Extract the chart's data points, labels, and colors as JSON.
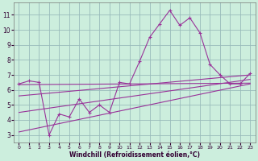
{
  "xlabel": "Windchill (Refroidissement éolien,°C)",
  "background_color": "#cceedd",
  "grid_color": "#99bbbb",
  "line_color": "#993399",
  "xlim": [
    -0.5,
    23.5
  ],
  "ylim": [
    2.5,
    11.8
  ],
  "xticks": [
    0,
    1,
    2,
    3,
    4,
    5,
    6,
    7,
    8,
    9,
    10,
    11,
    12,
    13,
    14,
    15,
    16,
    17,
    18,
    19,
    20,
    21,
    22,
    23
  ],
  "yticks": [
    3,
    4,
    5,
    6,
    7,
    8,
    9,
    10,
    11
  ],
  "main_x": [
    0,
    1,
    2,
    3,
    4,
    5,
    6,
    7,
    8,
    9,
    10,
    11,
    12,
    13,
    14,
    15,
    16,
    17,
    18,
    19,
    20,
    21,
    22,
    23
  ],
  "main_y": [
    6.4,
    6.6,
    6.5,
    3.0,
    4.4,
    4.2,
    5.4,
    4.5,
    5.0,
    4.5,
    6.5,
    6.4,
    7.9,
    9.5,
    10.4,
    11.3,
    10.3,
    10.8,
    9.8,
    7.7,
    7.0,
    6.4,
    6.4,
    7.1
  ],
  "line1_x": [
    0,
    23
  ],
  "line1_y": [
    6.35,
    6.45
  ],
  "line2_x": [
    0,
    23
  ],
  "line2_y": [
    5.6,
    7.0
  ],
  "line3_x": [
    0,
    23
  ],
  "line3_y": [
    4.5,
    6.7
  ],
  "line4_x": [
    0,
    23
  ],
  "line4_y": [
    3.2,
    6.4
  ]
}
